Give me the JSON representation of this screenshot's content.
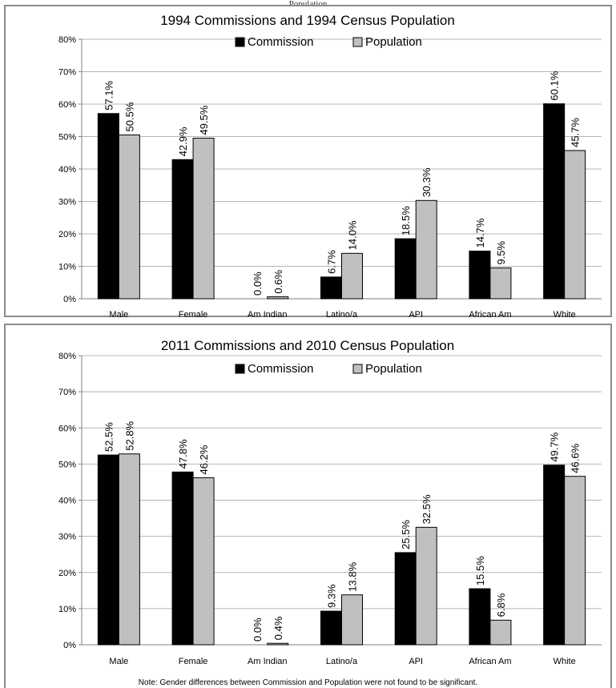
{
  "page_header": "Population",
  "footnote": "Note: Gender differences between Commission and Population were not found to be significant.",
  "colors": {
    "commission": "#000000",
    "population": "#c0c0c0",
    "grid": "#b5b5b5",
    "frame": "#8c8c8c"
  },
  "chart_data": [
    {
      "type": "bar",
      "title": "1994 Commissions and 1994 Census Population",
      "categories": [
        "Male",
        "Female",
        "Am Indian",
        "Latino/a",
        "API",
        "African Am",
        "White"
      ],
      "series": [
        {
          "name": "Commission",
          "values": [
            57.1,
            42.9,
            0.0,
            6.7,
            18.5,
            14.7,
            60.1
          ],
          "labels": [
            "57.1%",
            "42.9%",
            "0.0%",
            "6.7%",
            "18.5%",
            "14.7%",
            "60.1%"
          ]
        },
        {
          "name": "Population",
          "values": [
            50.5,
            49.5,
            0.6,
            14.0,
            30.3,
            9.5,
            45.7
          ],
          "labels": [
            "50.5%",
            "49.5%",
            "0.6%",
            "14.0%",
            "30.3%",
            "9.5%",
            "45.7%"
          ]
        }
      ],
      "ylim": [
        0,
        80
      ],
      "yticks": [
        "0%",
        "10%",
        "20%",
        "30%",
        "40%",
        "50%",
        "60%",
        "70%",
        "80%"
      ],
      "grid": true,
      "legend": "top-center"
    },
    {
      "type": "bar",
      "title": "2011 Commissions and 2010 Census Population",
      "categories": [
        "Male",
        "Female",
        "Am Indian",
        "Latino/a",
        "API",
        "African Am",
        "White"
      ],
      "series": [
        {
          "name": "Commission",
          "values": [
            52.5,
            47.8,
            0.0,
            9.3,
            25.5,
            15.5,
            49.7
          ],
          "labels": [
            "52.5%",
            "47.8%",
            "0.0%",
            "9.3%",
            "25.5%",
            "15.5%",
            "49.7%"
          ]
        },
        {
          "name": "Population",
          "values": [
            52.8,
            46.2,
            0.4,
            13.8,
            32.5,
            6.8,
            46.6
          ],
          "labels": [
            "52.8%",
            "46.2%",
            "0.4%",
            "13.8%",
            "32.5%",
            "6.8%",
            "46.6%"
          ]
        }
      ],
      "ylim": [
        0,
        80
      ],
      "yticks": [
        "0%",
        "10%",
        "20%",
        "30%",
        "40%",
        "50%",
        "60%",
        "70%",
        "80%"
      ],
      "grid": true,
      "legend": "top-center"
    }
  ]
}
